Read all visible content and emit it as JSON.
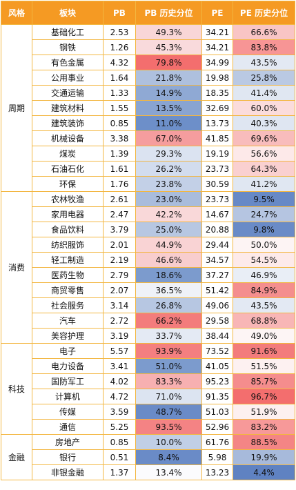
{
  "header": [
    "风格",
    "板块",
    "PB",
    "PB 历史分位",
    "PE",
    "PE 历史分位"
  ],
  "groups": [
    {
      "style": "周期",
      "rows": [
        {
          "name": "基础化工",
          "pb": "2.53",
          "pbp": "49.3%",
          "pe": "34.21",
          "pep": "66.6%",
          "pbc": "#f9d6d7",
          "pec": "#f9c5c5"
        },
        {
          "name": "钢铁",
          "pb": "1.26",
          "pbp": "45.3%",
          "pe": "34.21",
          "pep": "83.8%",
          "pbc": "#f9dadc",
          "pec": "#f79595"
        },
        {
          "name": "有色金属",
          "pb": "4.32",
          "pbp": "79.8%",
          "pe": "34.99",
          "pep": "43.5%",
          "pbc": "#f36e6e",
          "pec": "#e3e9f3"
        },
        {
          "name": "公用事业",
          "pb": "1.64",
          "pbp": "21.8%",
          "pe": "19.98",
          "pep": "25.8%",
          "pbc": "#aec0de",
          "pec": "#bac9e3"
        },
        {
          "name": "交通运输",
          "pb": "1.33",
          "pbp": "14.9%",
          "pe": "18.35",
          "pep": "41.4%",
          "pbc": "#8fa9d4",
          "pec": "#e0e7f2"
        },
        {
          "name": "建筑材料",
          "pb": "1.55",
          "pbp": "13.5%",
          "pe": "32.69",
          "pep": "60.0%",
          "pbc": "#89a4d1",
          "pec": "#fbdcdc"
        },
        {
          "name": "建筑装饰",
          "pb": "0.85",
          "pbp": "11.0%",
          "pe": "13.73",
          "pep": "40.3%",
          "pbc": "#6d8fc9",
          "pec": "#dfe6f2"
        },
        {
          "name": "机械设备",
          "pb": "3.38",
          "pbp": "67.0%",
          "pe": "41.85",
          "pep": "69.6%",
          "pbc": "#f59d9e",
          "pec": "#f8bcbc"
        },
        {
          "name": "煤炭",
          "pb": "1.39",
          "pbp": "29.3%",
          "pe": "19.19",
          "pep": "56.6%",
          "pbc": "#dbe3f1",
          "pec": "#fde9e9"
        },
        {
          "name": "石油石化",
          "pb": "1.61",
          "pbp": "26.2%",
          "pe": "23.73",
          "pep": "64.3%",
          "pbc": "#d2dcee",
          "pec": "#fad0d0"
        },
        {
          "name": "环保",
          "pb": "1.76",
          "pbp": "23.8%",
          "pe": "30.59",
          "pep": "41.2%",
          "pbc": "#c3d0e7",
          "pec": "#e0e7f2"
        }
      ]
    },
    {
      "style": "消费",
      "rows": [
        {
          "name": "农林牧渔",
          "pb": "2.61",
          "pbp": "23.0%",
          "pe": "23.73",
          "pep": "9.5%",
          "pbc": "#a9bcdc",
          "pec": "#6789c6"
        },
        {
          "name": "家用电器",
          "pb": "2.47",
          "pbp": "42.2%",
          "pe": "14.67",
          "pep": "24.7%",
          "pbc": "#f9d8d9",
          "pec": "#b5c5e1"
        },
        {
          "name": "食品饮料",
          "pb": "3.79",
          "pbp": "25.0%",
          "pe": "20.88",
          "pep": "9.8%",
          "pbc": "#b7c7e2",
          "pec": "#6a8bc7"
        },
        {
          "name": "纺织服饰",
          "pb": "2.01",
          "pbp": "44.9%",
          "pe": "29.44",
          "pep": "50.0%",
          "pbc": "#f9d3d4",
          "pec": "#fdf4f4"
        },
        {
          "name": "轻工制造",
          "pb": "2.19",
          "pbp": "46.6%",
          "pe": "34.57",
          "pep": "54.5%",
          "pbc": "#f8cdce",
          "pec": "#fdeaea"
        },
        {
          "name": "医药生物",
          "pb": "2.79",
          "pbp": "18.6%",
          "pe": "37.27",
          "pep": "46.9%",
          "pbc": "#7c9bcd",
          "pec": "#e9eef6"
        },
        {
          "name": "商贸零售",
          "pb": "2.07",
          "pbp": "36.5%",
          "pe": "51.42",
          "pep": "84.9%",
          "pbc": "#eff2f8",
          "pec": "#f48e8e"
        },
        {
          "name": "社会服务",
          "pb": "3.14",
          "pbp": "26.8%",
          "pe": "49.06",
          "pep": "43.5%",
          "pbc": "#b7c7e2",
          "pec": "#e3e9f3"
        },
        {
          "name": "汽车",
          "pb": "2.72",
          "pbp": "66.2%",
          "pe": "29.58",
          "pep": "68.8%",
          "pbc": "#f37c7c",
          "pec": "#f8b6b6"
        },
        {
          "name": "美容护理",
          "pb": "3.19",
          "pbp": "33.7%",
          "pe": "38.44",
          "pep": "49.0%",
          "pbc": "#e4eaf4",
          "pec": "#fdf5f5"
        }
      ]
    },
    {
      "style": "科技",
      "rows": [
        {
          "name": "电子",
          "pb": "5.57",
          "pbp": "93.9%",
          "pe": "73.52",
          "pep": "91.6%",
          "pbc": "#f47f80",
          "pec": "#f37c7c"
        },
        {
          "name": "电力设备",
          "pb": "3.41",
          "pbp": "51.0%",
          "pe": "41.05",
          "pep": "51.5%",
          "pbc": "#7c9bcd",
          "pec": "#fdf1f1"
        },
        {
          "name": "国防军工",
          "pb": "4.02",
          "pbp": "83.3%",
          "pe": "95.23",
          "pep": "85.7%",
          "pbc": "#f7b0b1",
          "pec": "#f58d8d"
        },
        {
          "name": "计算机",
          "pb": "4.72",
          "pbp": "71.0%",
          "pe": "91.35",
          "pep": "96.7%",
          "pbc": "#dce4f1",
          "pec": "#f36e6e"
        },
        {
          "name": "传媒",
          "pb": "3.59",
          "pbp": "48.7%",
          "pe": "51.03",
          "pep": "51.9%",
          "pbc": "#6a8bc7",
          "pec": "#fdf0f0"
        },
        {
          "name": "通信",
          "pb": "5.25",
          "pbp": "93.5%",
          "pe": "52.96",
          "pep": "83.2%",
          "pbc": "#f48384",
          "pec": "#f79999"
        }
      ]
    },
    {
      "style": "金融",
      "rows": [
        {
          "name": "房地产",
          "pb": "0.85",
          "pbp": "10.0%",
          "pe": "61.76",
          "pep": "88.5%",
          "pbc": "#c1cfe6",
          "pec": "#f48585"
        },
        {
          "name": "银行",
          "pb": "0.51",
          "pbp": "8.4%",
          "pe": "5.98",
          "pep": "19.9%",
          "pbc": "#6a8bc7",
          "pec": "#a7badb"
        },
        {
          "name": "非银金融",
          "pb": "1.37",
          "pbp": "13.4%",
          "pe": "13.23",
          "pep": "4.4%",
          "pbc": "#fbfbfd",
          "pec": "#5f82c2"
        }
      ]
    }
  ]
}
